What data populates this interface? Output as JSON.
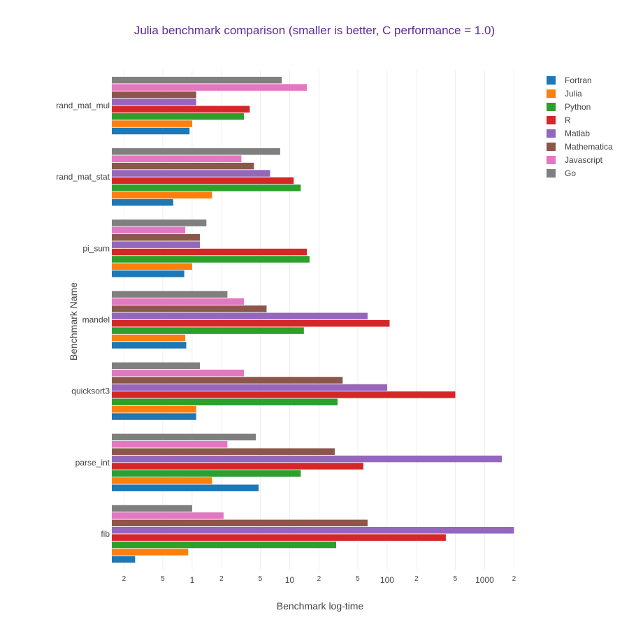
{
  "chart_data": {
    "type": "bar",
    "orientation": "horizontal",
    "title": "Julia benchmark comparison (smaller is better, C performance = 1.0)",
    "xlabel": "Benchmark log-time",
    "ylabel": "Benchmark Name",
    "x_scale": "log",
    "xlim": [
      0.15,
      3000
    ],
    "grid": true,
    "legend_position": "top-right",
    "categories": [
      "fib",
      "parse_int",
      "quicksort3",
      "mandel",
      "pi_sum",
      "rand_mat_stat",
      "rand_mat_mul"
    ],
    "x_ticks": [
      {
        "value": 0.2,
        "label": "2",
        "major": false
      },
      {
        "value": 0.5,
        "label": "5",
        "major": false
      },
      {
        "value": 1,
        "label": "1",
        "major": true
      },
      {
        "value": 2,
        "label": "2",
        "major": false
      },
      {
        "value": 5,
        "label": "5",
        "major": false
      },
      {
        "value": 10,
        "label": "10",
        "major": true
      },
      {
        "value": 20,
        "label": "2",
        "major": false
      },
      {
        "value": 50,
        "label": "5",
        "major": false
      },
      {
        "value": 100,
        "label": "100",
        "major": true
      },
      {
        "value": 200,
        "label": "2",
        "major": false
      },
      {
        "value": 500,
        "label": "5",
        "major": false
      },
      {
        "value": 1000,
        "label": "1000",
        "major": true
      },
      {
        "value": 2000,
        "label": "2",
        "major": false
      }
    ],
    "series": [
      {
        "name": "Fortran",
        "color": "#1f77b4",
        "values": [
          0.26,
          4.8,
          1.1,
          0.87,
          0.83,
          0.64,
          0.94
        ]
      },
      {
        "name": "Julia",
        "color": "#ff7f0e",
        "values": [
          0.91,
          1.6,
          1.1,
          0.85,
          1.0,
          1.6,
          1.0
        ]
      },
      {
        "name": "Python",
        "color": "#2ca02c",
        "values": [
          30,
          13,
          31,
          14,
          16,
          13,
          3.4
        ]
      },
      {
        "name": "R",
        "color": "#d62728",
        "values": [
          400,
          57,
          500,
          106,
          15,
          11,
          3.9
        ]
      },
      {
        "name": "Matlab",
        "color": "#9467bd",
        "values": [
          2000,
          1500,
          100,
          63,
          1.2,
          6.3,
          1.1
        ]
      },
      {
        "name": "Mathematica",
        "color": "#8c564b",
        "values": [
          63,
          29,
          35,
          5.8,
          1.2,
          4.3,
          1.1
        ]
      },
      {
        "name": "Javascript",
        "color": "#e377c2",
        "values": [
          2.1,
          2.3,
          3.4,
          3.4,
          0.85,
          3.2,
          15
        ]
      },
      {
        "name": "Go",
        "color": "#7f7f7f",
        "values": [
          1.0,
          4.5,
          1.2,
          2.3,
          1.4,
          8.0,
          8.3
        ]
      }
    ]
  }
}
